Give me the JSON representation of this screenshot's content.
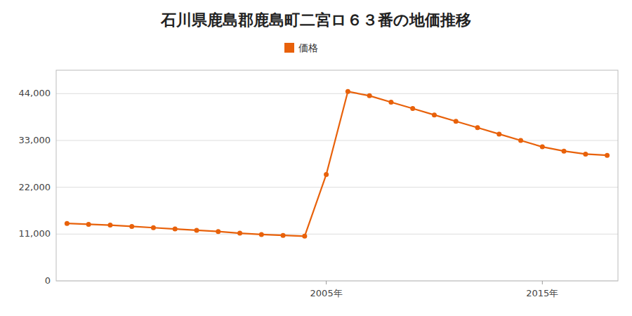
{
  "chart_data": {
    "type": "line",
    "title": "石川県鹿島郡鹿島町二宮ロ６３番の地価推移",
    "x": [
      1993,
      1994,
      1995,
      1996,
      1997,
      1998,
      1999,
      2000,
      2001,
      2002,
      2003,
      2004,
      2005,
      2006,
      2007,
      2008,
      2009,
      2010,
      2011,
      2012,
      2013,
      2014,
      2015,
      2016,
      2017,
      2018
    ],
    "series": [
      {
        "name": "価格",
        "color": "#E8610A",
        "marker": "circle",
        "line_style": "solid",
        "values": [
          13500,
          13300,
          13100,
          12800,
          12500,
          12200,
          11900,
          11600,
          11200,
          10900,
          10700,
          10500,
          25000,
          44500,
          43500,
          42000,
          40500,
          39000,
          37500,
          36000,
          34500,
          33000,
          31500,
          30500,
          29800,
          29500
        ]
      }
    ],
    "xlim": [
      1992.5,
      2018.5
    ],
    "xticks": [
      {
        "value": 2005,
        "label": "2005年"
      },
      {
        "value": 2015,
        "label": "2015年"
      }
    ],
    "ylim": [
      0,
      49500
    ],
    "yticks": [
      0,
      {
        "value": 11000,
        "label": "11,000"
      },
      {
        "value": 22000,
        "label": "22,000"
      },
      {
        "value": 33000,
        "label": "33,000"
      },
      {
        "value": 44000,
        "label": "44,000"
      }
    ],
    "grid": true,
    "legend": "top"
  }
}
